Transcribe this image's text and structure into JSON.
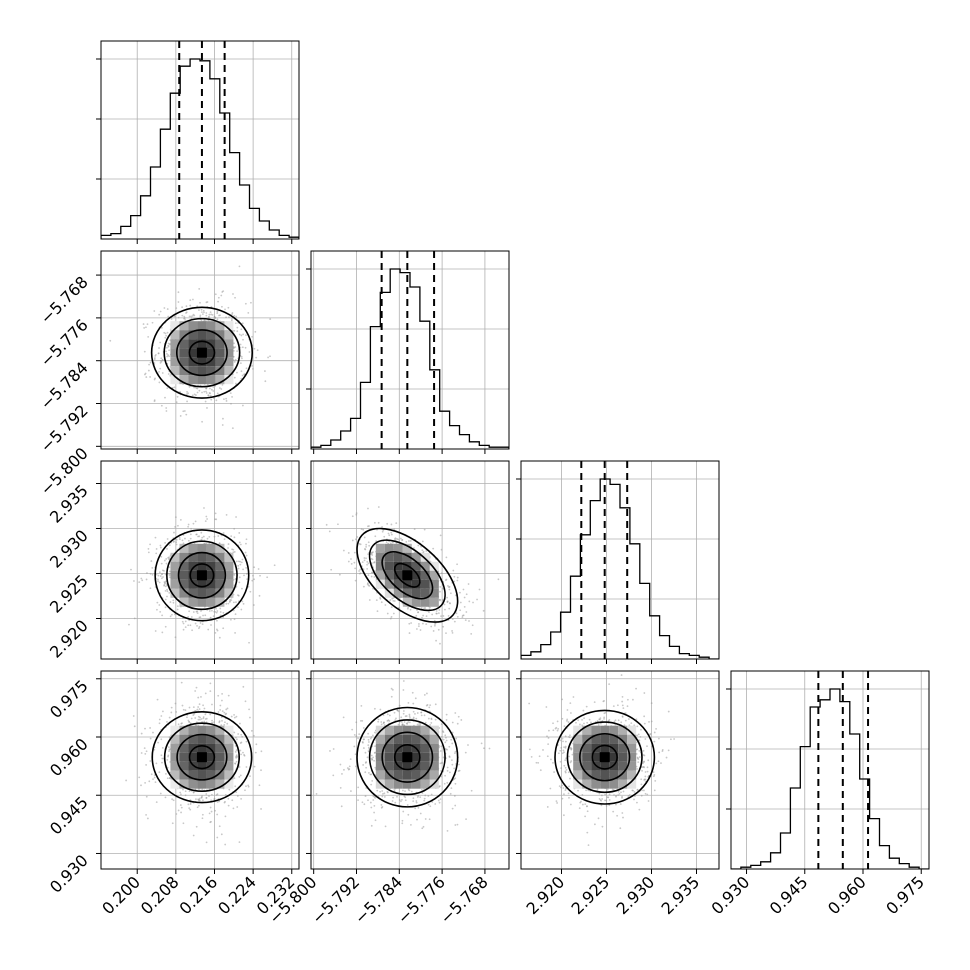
{
  "chart_data": {
    "type": "corner",
    "parameters": [
      {
        "range": [
          0.1925,
          0.2335
        ],
        "ticks": [
          0.2,
          0.208,
          0.216,
          0.224,
          0.232
        ],
        "tick_labels": [
          "0.200",
          "0.208",
          "0.216",
          "0.224",
          "0.232"
        ],
        "quantiles": [
          0.2087,
          0.2134,
          0.2181
        ],
        "mean": 0.2134,
        "sd": 0.0047,
        "hist_counts": [
          2,
          3,
          7,
          13,
          24,
          40,
          61,
          81,
          96,
          100,
          99,
          89,
          70,
          48,
          30,
          17,
          10,
          5,
          2,
          1
        ]
      },
      {
        "range": [
          -5.8005,
          -5.7635
        ],
        "ticks": [
          -5.8,
          -5.792,
          -5.784,
          -5.776,
          -5.768
        ],
        "tick_labels": [
          "−5.800",
          "−5.792",
          "−5.784",
          "−5.776",
          "−5.768"
        ],
        "quantiles": [
          -5.7873,
          -5.7825,
          -5.7775
        ],
        "mean": -5.7825,
        "sd": 0.0047,
        "hist_counts": [
          1,
          2,
          5,
          10,
          17,
          37,
          68,
          87,
          100,
          98,
          90,
          71,
          44,
          21,
          13,
          8,
          4,
          2,
          1,
          1
        ]
      },
      {
        "range": [
          2.9155,
          2.9375
        ],
        "ticks": [
          2.92,
          2.925,
          2.93,
          2.935
        ],
        "tick_labels": [
          "2.920",
          "2.925",
          "2.930",
          "2.935"
        ],
        "quantiles": [
          2.9222,
          2.9248,
          2.9273
        ],
        "mean": 2.9248,
        "sd": 0.0026,
        "hist_counts": [
          2,
          4,
          8,
          15,
          26,
          46,
          69,
          88,
          100,
          97,
          84,
          64,
          42,
          24,
          13,
          7,
          3,
          2,
          1,
          0
        ]
      },
      {
        "range": [
          0.926,
          0.977
        ],
        "ticks": [
          0.93,
          0.945,
          0.96,
          0.975
        ],
        "tick_labels": [
          "0.930",
          "0.945",
          "0.960",
          "0.975"
        ],
        "quantiles": [
          0.9485,
          0.9548,
          0.9613
        ],
        "mean": 0.9548,
        "sd": 0.0064,
        "hist_counts": [
          0,
          1,
          2,
          4,
          9,
          20,
          45,
          68,
          90,
          94,
          100,
          93,
          75,
          50,
          28,
          13,
          6,
          3,
          1,
          0
        ]
      }
    ],
    "correlations": {
      "1-0": 0.0,
      "2-0": 0.0,
      "2-1": -0.55,
      "3-0": 0.0,
      "3-1": 0.0,
      "3-2": 0.0
    },
    "contour_levels_sigma": [
      0.5,
      1.0,
      1.5,
      2.0
    ],
    "grid": true,
    "xlabel": "",
    "ylabel": "",
    "title": ""
  }
}
